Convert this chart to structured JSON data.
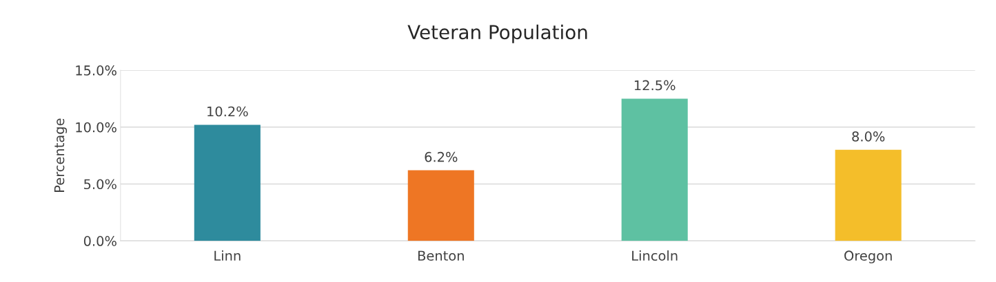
{
  "chart_data": {
    "type": "bar",
    "title": "Veteran Population",
    "ylabel": "Percentage",
    "categories": [
      "Linn",
      "Benton",
      "Lincoln",
      "Oregon"
    ],
    "values": [
      10.2,
      6.2,
      12.5,
      8.0
    ],
    "colors": [
      "#2e8b9d",
      "#ee7624",
      "#5ec1a2",
      "#f4be2a"
    ],
    "value_labels": [
      "10.2%",
      "6.2%",
      "12.5%",
      "8.0%"
    ],
    "ylim": [
      0,
      15
    ],
    "yticks": [
      {
        "value": 0,
        "label": "0.0%"
      },
      {
        "value": 5,
        "label": "5.0%"
      },
      {
        "value": 10,
        "label": "10.0%"
      },
      {
        "value": 15,
        "label": "15.0%"
      }
    ],
    "grid": "y",
    "legend": false
  }
}
